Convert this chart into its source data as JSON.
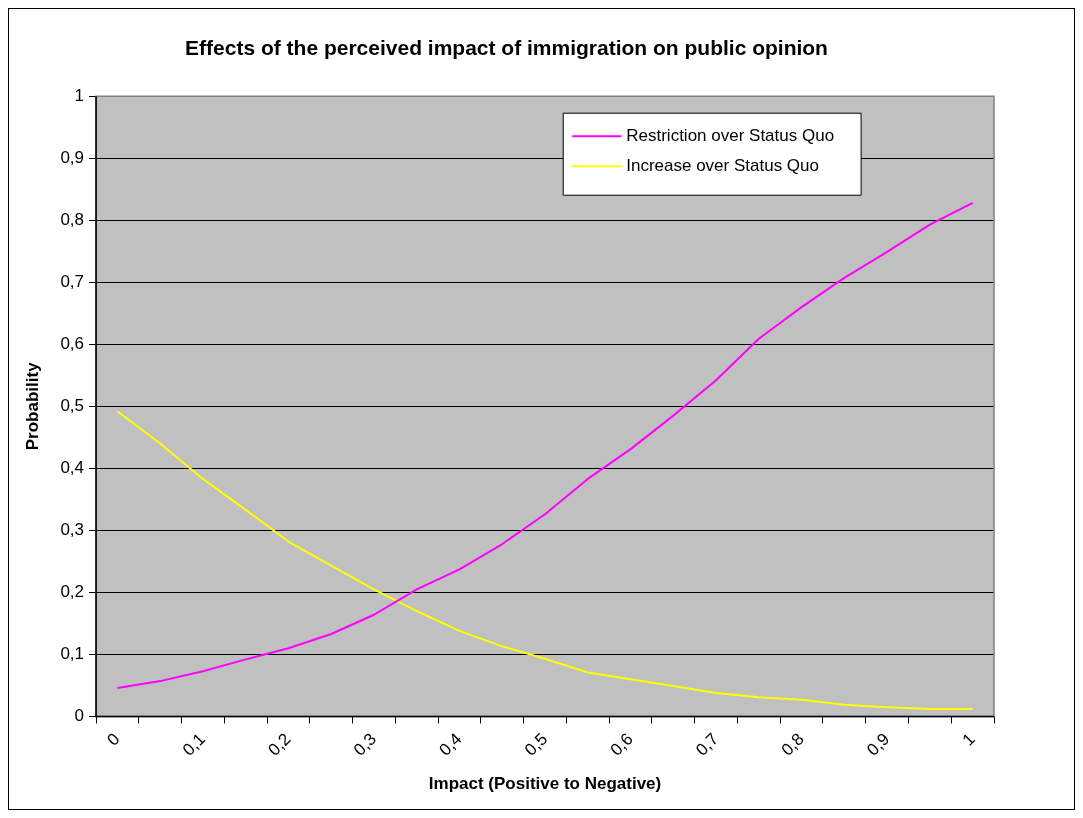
{
  "chart_data": {
    "type": "line",
    "title": "Effects of the perceived impact of immigration on public opinion",
    "xlabel": "Impact (Positive to Negative)",
    "ylabel": "Probability",
    "categories": [
      "0",
      null,
      "0,1",
      null,
      "0,2",
      null,
      "0,3",
      null,
      "0,4",
      null,
      "0,5",
      null,
      "0,6",
      null,
      "0,7",
      null,
      "0,8",
      null,
      "0,9",
      null,
      "1"
    ],
    "series": [
      {
        "name": "Restriction over Status Quo",
        "color": "#ff00ff",
        "values": [
          0.046,
          0.057,
          0.073,
          0.092,
          0.11,
          0.133,
          0.164,
          0.205,
          0.237,
          0.278,
          0.326,
          0.383,
          0.431,
          0.485,
          0.542,
          0.609,
          0.66,
          0.707,
          0.749,
          0.793,
          0.828
        ]
      },
      {
        "name": "Increase over Status Quo",
        "color": "#ffff00",
        "values": [
          0.492,
          0.44,
          0.383,
          0.333,
          0.282,
          0.243,
          0.205,
          0.17,
          0.138,
          0.113,
          0.093,
          0.071,
          0.06,
          0.049,
          0.038,
          0.031,
          0.027,
          0.019,
          0.015,
          0.012,
          0.012
        ]
      }
    ],
    "ylim": [
      0,
      1
    ],
    "yticks": [
      0,
      {
        "value": 0.1,
        "label": "0,1"
      },
      {
        "value": 0.2,
        "label": "0,2"
      },
      {
        "value": 0.3,
        "label": "0,3"
      },
      {
        "value": 0.4,
        "label": "0,4"
      },
      {
        "value": 0.5,
        "label": "0,5"
      },
      {
        "value": 0.6,
        "label": "0,6"
      },
      {
        "value": 0.7,
        "label": "0,7"
      },
      {
        "value": 0.8,
        "label": "0,8"
      },
      {
        "value": 0.9,
        "label": "0,9"
      },
      1
    ],
    "grid": "y",
    "legend": "top right",
    "marker": "none",
    "line_style": "solid"
  }
}
